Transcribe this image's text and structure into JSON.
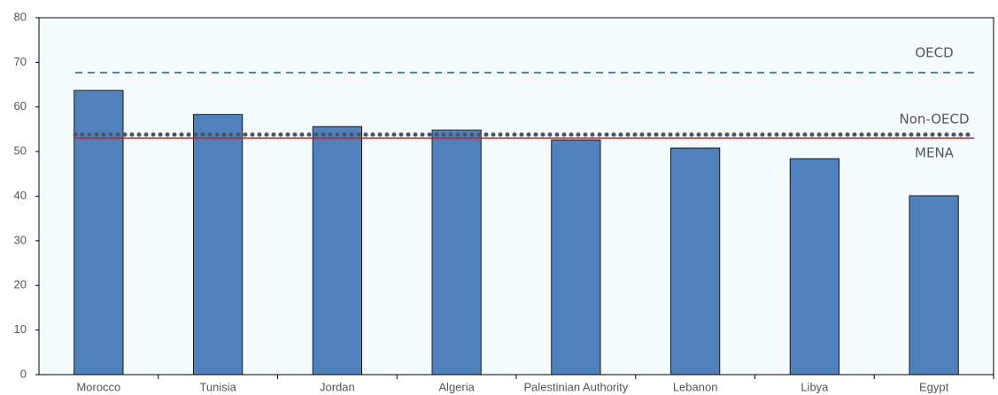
{
  "chart_data": {
    "type": "bar",
    "categories": [
      "Morocco",
      "Tunisia",
      "Jordan",
      "Algeria",
      "Palestinian Authority",
      "Lebanon",
      "Libya",
      "Egypt"
    ],
    "values": [
      63.7,
      58.3,
      55.6,
      54.8,
      52.6,
      50.8,
      48.4,
      40.1
    ],
    "color": "#4f81bd",
    "ylim": [
      0,
      80
    ],
    "yticks": [
      0,
      10,
      20,
      30,
      40,
      50,
      60,
      70,
      80
    ],
    "reference_lines": [
      {
        "name": "OECD",
        "value": 67.7,
        "color": "#4a86b0",
        "style": "dashed"
      },
      {
        "name": "Non-OECD",
        "value": 53.8,
        "color": "#4b5563",
        "style": "dotted"
      },
      {
        "name": "MENA",
        "value": 53.0,
        "color": "#c0262d",
        "style": "solid"
      }
    ]
  }
}
